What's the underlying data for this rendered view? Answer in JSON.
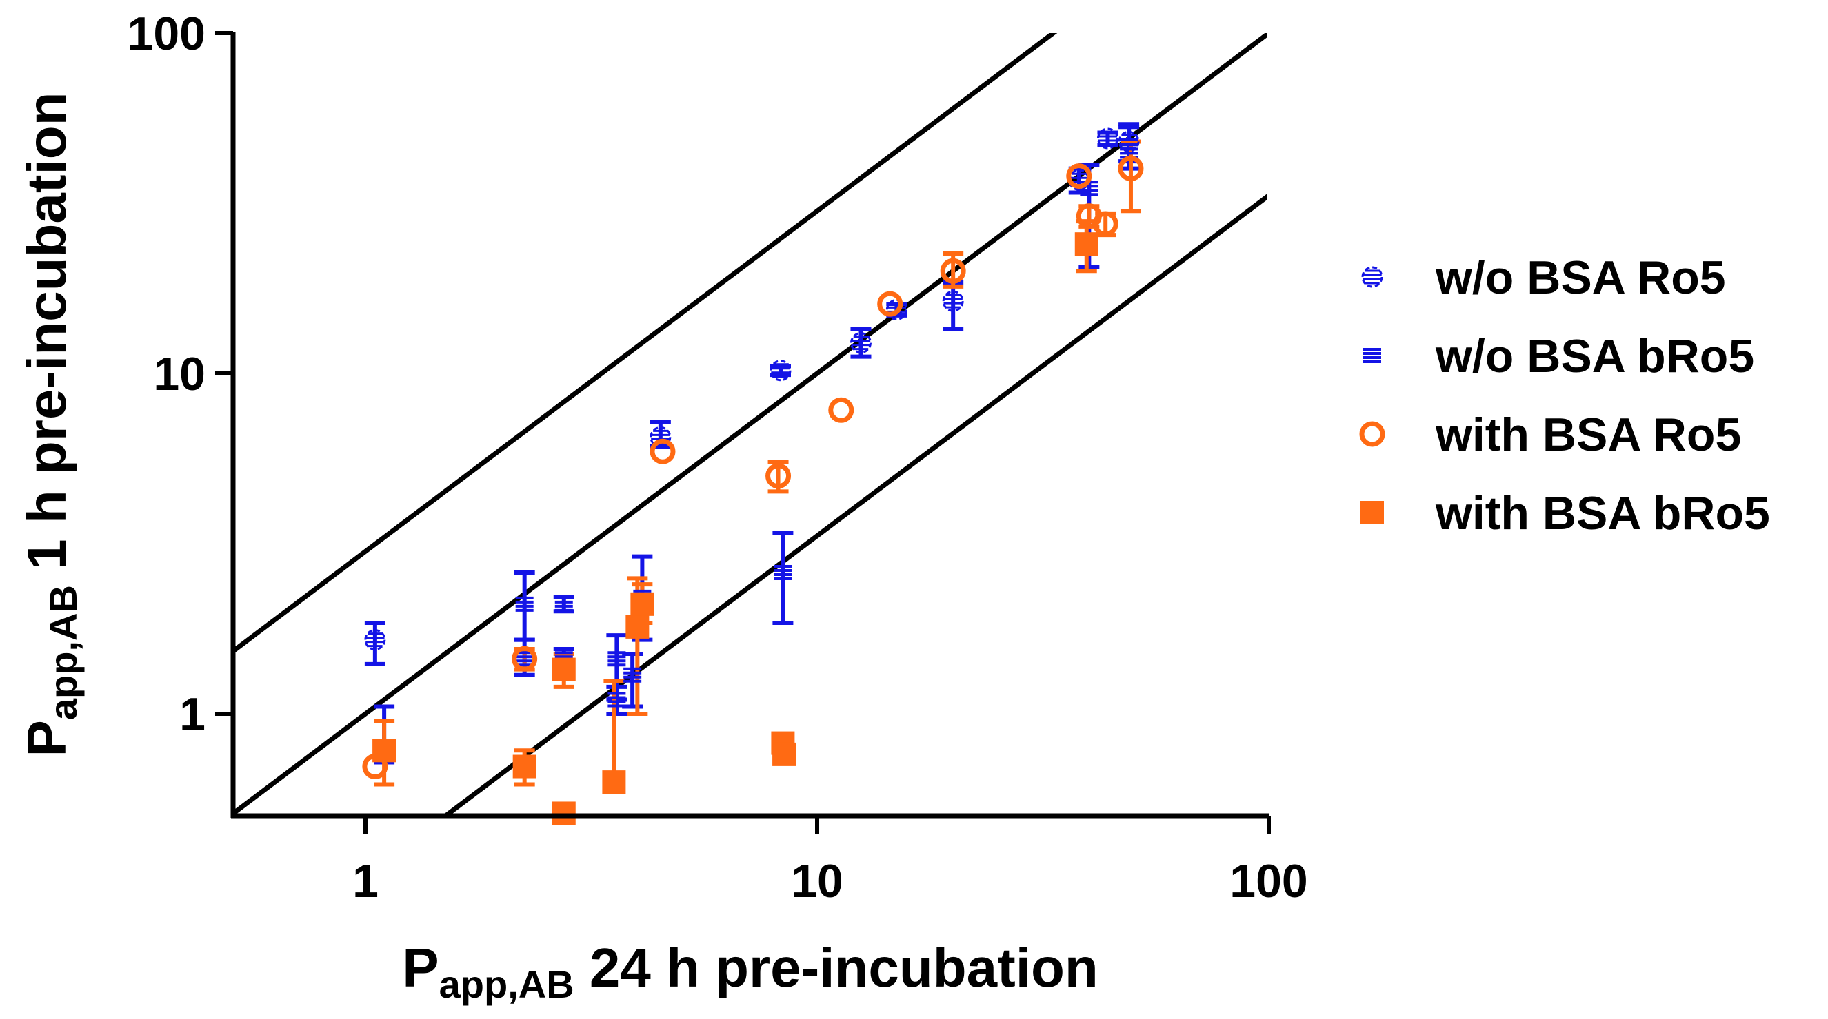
{
  "chart_data": {
    "type": "scatter",
    "xscale": "log",
    "yscale": "log",
    "xlim": [
      0.5,
      100
    ],
    "ylim": [
      0.5,
      100
    ],
    "xticks": [
      "1",
      "10",
      "100"
    ],
    "yticks": [
      "1",
      "10",
      "100"
    ],
    "xlabel": {
      "main": "P",
      "sub": "app,AB",
      "rest": " 24 h pre-incubation"
    },
    "ylabel": {
      "main": "P",
      "sub": "app,AB",
      "rest": " 1 h pre-incubation"
    },
    "reference_lines": [
      {
        "name": "upper-3-fold-line",
        "factor": 3
      },
      {
        "name": "identity-line",
        "factor": 1
      },
      {
        "name": "lower-3-fold-line",
        "factor": 0.3333
      }
    ],
    "legend_position": "right",
    "series": [
      {
        "name": "w/o BSA Ro5",
        "key": "woBSA-Ro5",
        "color": "#1414e6",
        "marker": "hatched-circle",
        "points": [
          {
            "x": 1.05,
            "y": 1.65,
            "lo": 1.4,
            "hi": 1.85
          },
          {
            "x": 4.5,
            "y": 6.5,
            "lo": 6.1,
            "hi": 7.2
          },
          {
            "x": 8.3,
            "y": 10.2,
            "lo": 9.9,
            "hi": 10.5
          },
          {
            "x": 12.5,
            "y": 12.3,
            "lo": 11.2,
            "hi": 13.5
          },
          {
            "x": 15.0,
            "y": 15.4,
            "lo": 14.8,
            "hi": 16.0
          },
          {
            "x": 20.0,
            "y": 16.3,
            "lo": 13.5,
            "hi": 18.5
          },
          {
            "x": 38.0,
            "y": 37.0,
            "lo": 34.0,
            "hi": 40.0
          },
          {
            "x": 44.0,
            "y": 49.0,
            "lo": 47.0,
            "hi": 51.0
          },
          {
            "x": 49.0,
            "y": 48.0,
            "lo": 42.0,
            "hi": 54.0
          }
        ]
      },
      {
        "name": "w/o BSA bRo5",
        "key": "woBSA-bRo5",
        "color": "#1414e6",
        "marker": "hatched-square",
        "points": [
          {
            "x": 1.1,
            "y": 0.8,
            "lo": 0.72,
            "hi": 1.05
          },
          {
            "x": 2.25,
            "y": 2.1,
            "lo": 1.65,
            "hi": 2.6
          },
          {
            "x": 2.25,
            "y": 1.45,
            "lo": 1.3,
            "hi": 1.65
          },
          {
            "x": 2.75,
            "y": 2.1,
            "lo": 2.0,
            "hi": 2.2
          },
          {
            "x": 2.75,
            "y": 1.45,
            "lo": 1.3,
            "hi": 1.55
          },
          {
            "x": 3.6,
            "y": 1.45,
            "lo": 1.1,
            "hi": 1.7
          },
          {
            "x": 3.6,
            "y": 1.1,
            "lo": 1.0,
            "hi": 1.2
          },
          {
            "x": 3.9,
            "y": 1.3,
            "lo": 1.05,
            "hi": 1.5
          },
          {
            "x": 4.1,
            "y": 2.2,
            "lo": 1.65,
            "hi": 2.9
          },
          {
            "x": 8.4,
            "y": 2.6,
            "lo": 1.85,
            "hi": 3.4
          },
          {
            "x": 40.0,
            "y": 35.0,
            "lo": 20.5,
            "hi": 41.0
          },
          {
            "x": 49.0,
            "y": 45.0,
            "lo": 40.0,
            "hi": 53.0
          }
        ]
      },
      {
        "name": "with BSA Ro5",
        "key": "withBSA-Ro5",
        "color": "#ff6a13",
        "marker": "open-circle",
        "points": [
          {
            "x": 1.05,
            "y": 0.7
          },
          {
            "x": 2.25,
            "y": 1.45,
            "lo": 1.35,
            "hi": 1.55
          },
          {
            "x": 4.55,
            "y": 5.9
          },
          {
            "x": 8.2,
            "y": 5.0,
            "lo": 4.5,
            "hi": 5.5
          },
          {
            "x": 11.3,
            "y": 7.8
          },
          {
            "x": 14.5,
            "y": 16.0
          },
          {
            "x": 20.0,
            "y": 20.0,
            "lo": 18.0,
            "hi": 22.5
          },
          {
            "x": 38.0,
            "y": 38.0
          },
          {
            "x": 40.0,
            "y": 29.0,
            "lo": 27.0,
            "hi": 31.0
          },
          {
            "x": 43.5,
            "y": 27.5,
            "lo": 25.5,
            "hi": 29.5
          },
          {
            "x": 49.5,
            "y": 40.0,
            "lo": 30.0,
            "hi": 48.0
          }
        ]
      },
      {
        "name": "with BSA bRo5",
        "key": "withBSA-bRo5",
        "color": "#ff6a13",
        "marker": "filled-square",
        "points": [
          {
            "x": 1.1,
            "y": 0.78,
            "lo": 0.62,
            "hi": 0.95
          },
          {
            "x": 2.25,
            "y": 0.7,
            "lo": 0.62,
            "hi": 0.78
          },
          {
            "x": 2.75,
            "y": 1.35,
            "lo": 1.2,
            "hi": 1.5
          },
          {
            "x": 2.75,
            "y": 0.51
          },
          {
            "x": 3.55,
            "y": 0.63,
            "lo": 0.6,
            "hi": 1.25
          },
          {
            "x": 4.0,
            "y": 1.8,
            "lo": 1.0,
            "hi": 2.5
          },
          {
            "x": 4.1,
            "y": 2.1,
            "lo": 1.85,
            "hi": 2.4
          },
          {
            "x": 8.4,
            "y": 0.82
          },
          {
            "x": 8.45,
            "y": 0.76
          },
          {
            "x": 39.5,
            "y": 24.0,
            "lo": 20.0,
            "hi": 28.0
          }
        ]
      }
    ]
  }
}
